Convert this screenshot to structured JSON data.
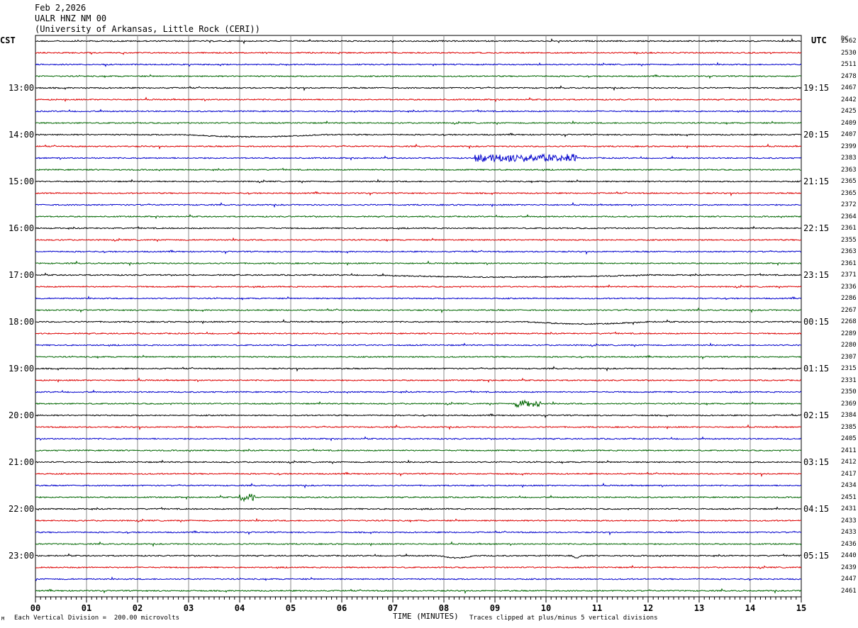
{
  "header": {
    "date": "Feb 2,2026",
    "station": "UALR HNZ NM 00",
    "institution": "(University of Arkansas, Little Rock (CERI))"
  },
  "left_axis_label": "CST",
  "right_axis_label": "UTC",
  "dc_header": "DC",
  "footer": {
    "corner_mark": "M",
    "scale_note": "Each Vertical Division =  200.00 microvolts",
    "xlabel": "TIME (MINUTES)",
    "clip_note": "Traces clipped at plus/minus 5 vertical divisions"
  },
  "colors": {
    "cycle": [
      "#000000",
      "#dd0000",
      "#0000cc",
      "#006600"
    ],
    "grid": "#888888"
  },
  "chart_data": {
    "type": "line",
    "title": "UALR HNZ NM 00",
    "xlabel": "TIME (MINUTES)",
    "xlim": [
      0,
      15
    ],
    "x_ticks": [
      "00",
      "01",
      "02",
      "03",
      "04",
      "05",
      "06",
      "07",
      "08",
      "09",
      "10",
      "11",
      "12",
      "13",
      "14",
      "15"
    ],
    "cst_hour_labels": [
      "13:00",
      "14:00",
      "15:00",
      "16:00",
      "17:00",
      "18:00",
      "19:00",
      "20:00",
      "21:00",
      "22:00",
      "23:00"
    ],
    "utc_hour_labels": [
      "19:15",
      "20:15",
      "21:15",
      "22:15",
      "23:15",
      "00:15",
      "01:15",
      "02:15",
      "03:15",
      "04:15",
      "05:15"
    ],
    "first_labeled_trace_index": 4,
    "traces_per_hour": 4,
    "trace_count": 48,
    "dc_values": [
      "2562",
      "2530",
      "2511",
      "2478",
      "2467",
      "2442",
      "2425",
      "2409",
      "2407",
      "2399",
      "2383",
      "2363",
      "2365",
      "2365",
      "2372",
      "2364",
      "2361",
      "2355",
      "2363",
      "2361",
      "2371",
      "2336",
      "2286",
      "2267",
      "2268",
      "2289",
      "2280",
      "2307",
      "2315",
      "2331",
      "2350",
      "2369",
      "2384",
      "2385",
      "2405",
      "2411",
      "2412",
      "2417",
      "2434",
      "2451",
      "2431",
      "2433",
      "2433",
      "2436",
      "2440",
      "2439",
      "2447",
      "2461"
    ],
    "notable_events": [
      {
        "trace": 8,
        "start_min": 2.9,
        "end_min": 5.6,
        "kind": "step"
      },
      {
        "trace": 10,
        "start_min": 8.6,
        "end_min": 10.6,
        "kind": "burst"
      },
      {
        "trace": 20,
        "start_min": 6.5,
        "end_min": 12.0,
        "kind": "step"
      },
      {
        "trace": 24,
        "start_min": 9.6,
        "end_min": 12.0,
        "kind": "step"
      },
      {
        "trace": 31,
        "start_min": 9.4,
        "end_min": 9.9,
        "kind": "burst"
      },
      {
        "trace": 39,
        "start_min": 4.0,
        "end_min": 4.3,
        "kind": "burst"
      },
      {
        "trace": 44,
        "start_min": 7.9,
        "end_min": 8.6,
        "kind": "step"
      },
      {
        "trace": 44,
        "start_min": 10.5,
        "end_min": 10.7,
        "kind": "step"
      }
    ]
  }
}
